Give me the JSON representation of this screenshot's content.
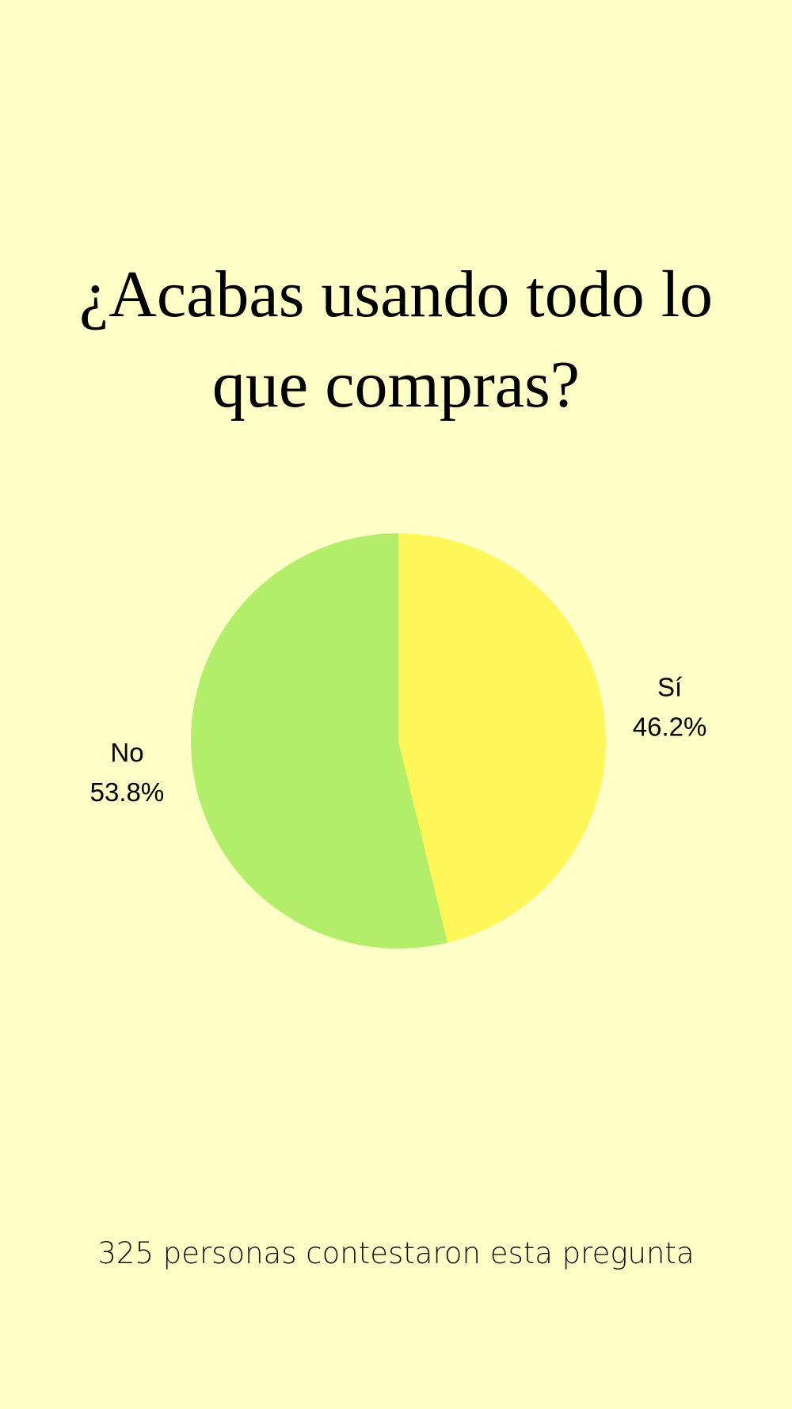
{
  "chart_data": {
    "type": "pie",
    "title": "¿Acabas usando todo lo que compras?",
    "categories": [
      "Sí",
      "No"
    ],
    "values": [
      46.2,
      53.8
    ],
    "value_labels": [
      "46.2%",
      "53.8%"
    ],
    "colors": [
      "#fff75a",
      "#b2ee6a"
    ],
    "footer": "325 personas contestaron esta pregunta"
  }
}
